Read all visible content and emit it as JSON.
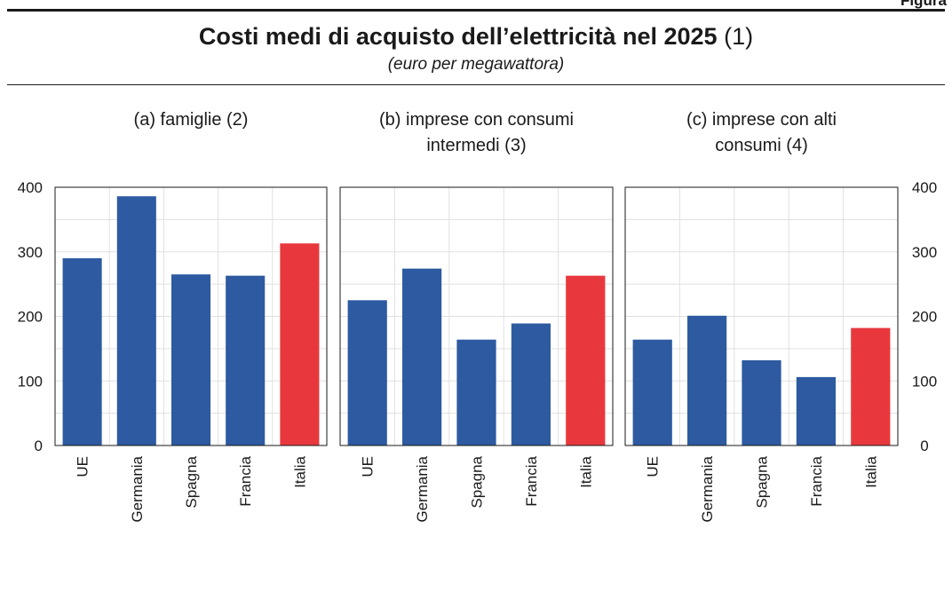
{
  "figure_tag": "Figura",
  "header": {
    "title_bold": "Costi medi di acquisto dell’elettricità nel 2025",
    "title_note": "(1)",
    "subtitle": "(euro per megawattora)"
  },
  "colors": {
    "bar": "#2d5aa0",
    "highlight": "#e8383d",
    "grid": "#e0e0e0",
    "frame": "#1a1a1a"
  },
  "chart_data": [
    {
      "type": "bar",
      "title_lines": [
        "(a) famiglie (2)"
      ],
      "categories": [
        "UE",
        "Germania",
        "Spagna",
        "Francia",
        "Italia"
      ],
      "values": [
        290,
        386,
        265,
        263,
        313
      ],
      "highlight": "Italia",
      "ylim": [
        0,
        400
      ],
      "yticks": [
        0,
        100,
        200,
        300,
        400
      ],
      "yaxis": "left",
      "grid": true
    },
    {
      "type": "bar",
      "title_lines": [
        "(b) imprese con consumi",
        "intermedi (3)"
      ],
      "categories": [
        "UE",
        "Germania",
        "Spagna",
        "Francia",
        "Italia"
      ],
      "values": [
        225,
        274,
        164,
        189,
        263
      ],
      "highlight": "Italia",
      "ylim": [
        0,
        400
      ],
      "yticks": [
        0,
        100,
        200,
        300,
        400
      ],
      "yaxis": "none",
      "grid": true
    },
    {
      "type": "bar",
      "title_lines": [
        "(c) imprese con alti",
        "consumi (4)"
      ],
      "categories": [
        "UE",
        "Germania",
        "Spagna",
        "Francia",
        "Italia"
      ],
      "values": [
        164,
        201,
        132,
        106,
        182
      ],
      "highlight": "Italia",
      "ylim": [
        0,
        400
      ],
      "yticks": [
        0,
        100,
        200,
        300,
        400
      ],
      "yaxis": "right",
      "grid": true
    }
  ]
}
